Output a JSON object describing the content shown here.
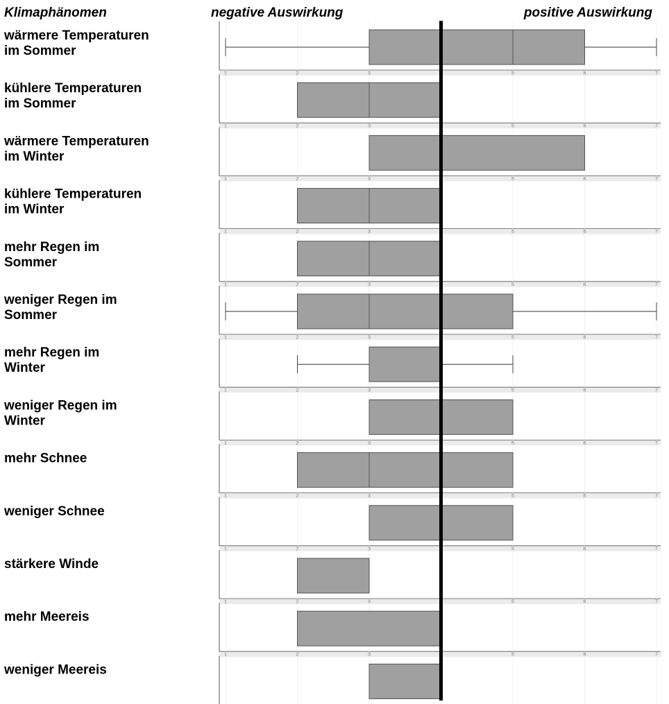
{
  "header": {
    "column_label": "Klimaphänomen",
    "negative_label": "negative Auswirkung",
    "positive_label": "positive Auswirkung"
  },
  "colors": {
    "box_fill": "#a0a0a0",
    "box_stroke": "#505050",
    "panel_bg": "#ebebeb",
    "divider": "#000000"
  },
  "chart_data": {
    "type": "boxplot",
    "title": "",
    "xlabel": "",
    "ylabel": "",
    "xlim": [
      1,
      7
    ],
    "xticks": [
      "1",
      "2",
      "3",
      "4",
      "5",
      "6",
      "7"
    ],
    "reference_line": 4,
    "series": [
      {
        "label_lines": [
          "wärmere Temperaturen",
          "im Sommer"
        ],
        "min": 1,
        "q1": 3,
        "median": 5,
        "q3": 6,
        "max": 7
      },
      {
        "label_lines": [
          "kühlere Temperaturen",
          "im Sommer"
        ],
        "min": 2,
        "q1": 2,
        "median": 3,
        "q3": 4,
        "max": 4
      },
      {
        "label_lines": [
          "wärmere Temperaturen",
          "im Winter"
        ],
        "min": 3,
        "q1": 3,
        "median": 3,
        "q3": 6,
        "max": 6
      },
      {
        "label_lines": [
          "kühlere Temperaturen",
          "im Winter"
        ],
        "min": 2,
        "q1": 2,
        "median": 3,
        "q3": 4,
        "max": 4
      },
      {
        "label_lines": [
          "mehr Regen im",
          "Sommer"
        ],
        "min": 2,
        "q1": 2,
        "median": 3,
        "q3": 4,
        "max": 4
      },
      {
        "label_lines": [
          "weniger Regen im",
          "Sommer"
        ],
        "min": 1,
        "q1": 2,
        "median": 3,
        "q3": 5,
        "max": 7
      },
      {
        "label_lines": [
          "mehr Regen im",
          "Winter"
        ],
        "min": 2,
        "q1": 3,
        "median": 3,
        "q3": 4,
        "max": 5
      },
      {
        "label_lines": [
          "weniger Regen im",
          "Winter"
        ],
        "min": 3,
        "q1": 3,
        "median": 3,
        "q3": 5,
        "max": 5
      },
      {
        "label_lines": [
          "mehr Schnee"
        ],
        "min": 2,
        "q1": 2,
        "median": 3,
        "q3": 5,
        "max": 5
      },
      {
        "label_lines": [
          "weniger Schnee"
        ],
        "min": 3,
        "q1": 3,
        "median": 3,
        "q3": 5,
        "max": 5
      },
      {
        "label_lines": [
          "stärkere Winde"
        ],
        "min": 2,
        "q1": 2,
        "median": 2,
        "q3": 3,
        "max": 3
      },
      {
        "label_lines": [
          "mehr Meereis"
        ],
        "min": 2,
        "q1": 2,
        "median": 2,
        "q3": 4,
        "max": 4
      },
      {
        "label_lines": [
          "weniger Meereis"
        ],
        "min": 3,
        "q1": 3,
        "median": 3,
        "q3": 4,
        "max": 4
      }
    ]
  }
}
